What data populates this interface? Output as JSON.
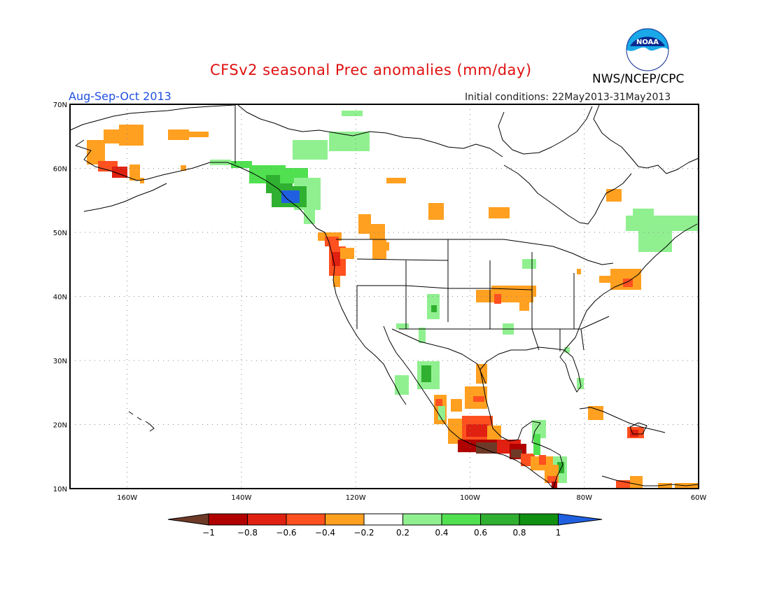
{
  "header": {
    "title": "CFSv2 seasonal Prec anomalies (mm/day)",
    "period": "Aug-Sep-Oct 2013",
    "initial_conditions": "Initial conditions: 22May2013-31May2013",
    "agency": "NWS/NCEP/CPC",
    "logo_text": "NOAA"
  },
  "map": {
    "lat_labels": [
      "70N",
      "60N",
      "50N",
      "40N",
      "30N",
      "20N",
      "10N"
    ],
    "lon_labels": [
      "160W",
      "140W",
      "120W",
      "100W",
      "80W",
      "60W"
    ],
    "lon_range": [
      -170,
      -60
    ],
    "lat_range": [
      10,
      70
    ]
  },
  "colorbar": {
    "tick_labels": [
      "-1",
      "-0.8",
      "-0.6",
      "-0.4",
      "-0.2",
      "0.2",
      "0.4",
      "0.6",
      "0.8",
      "1"
    ],
    "colors": [
      "#6e3a28",
      "#b00000",
      "#e02010",
      "#ff5020",
      "#ffa020",
      "#ffffff",
      "#90f090",
      "#50e050",
      "#30b030",
      "#109010",
      "#2060e0"
    ]
  },
  "colors": {
    "title": "#e01010",
    "period": "#2050e0",
    "orange": "#ffa020",
    "red_orange": "#ff5020",
    "red": "#e02010",
    "dark_red": "#b00000",
    "brown": "#6e3a28",
    "light_green": "#90f090",
    "green": "#50e050",
    "med_green": "#30b030",
    "dark_green": "#109010",
    "blue": "#2060e0"
  }
}
